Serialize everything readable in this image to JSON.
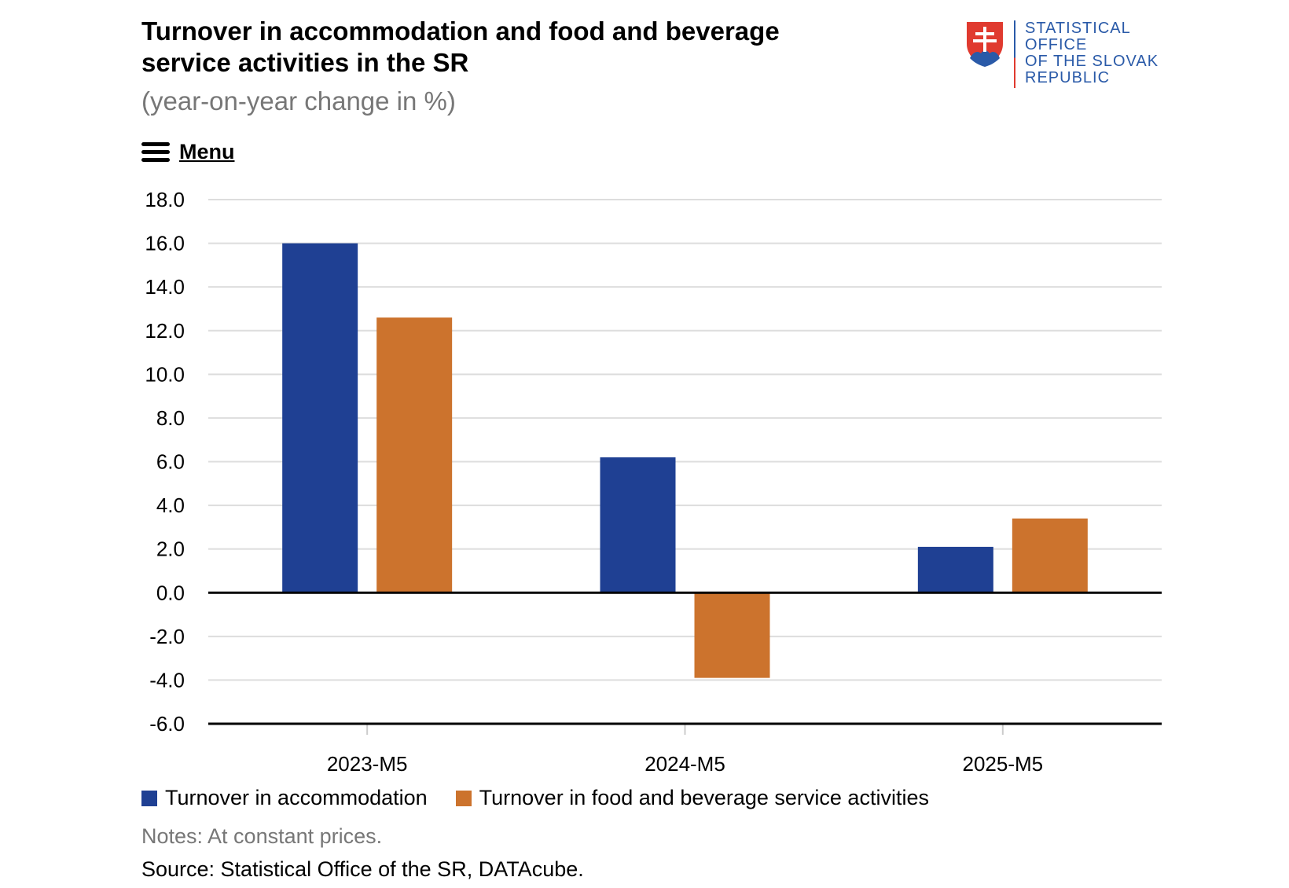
{
  "header": {
    "title": "Turnover in accommodation and food and beverage service activities in the SR",
    "subtitle": "(year-on-year change in %)"
  },
  "logo": {
    "lines": [
      "STATISTICAL",
      "OFFICE",
      "OF THE SLOVAK",
      "REPUBLIC"
    ],
    "emblem_icon": "slovak-coat-of-arms-icon"
  },
  "menu": {
    "label": "Menu",
    "icon": "hamburger-icon"
  },
  "colors": {
    "accommodation": "#1f4093",
    "food_beverage": "#cc732d",
    "grid": "#dddddd",
    "axis": "#000000"
  },
  "chart_data": {
    "type": "bar",
    "categories": [
      "2023-M5",
      "2024-M5",
      "2025-M5"
    ],
    "series": [
      {
        "name": "Turnover in accommodation",
        "values": [
          16.0,
          6.2,
          2.1
        ]
      },
      {
        "name": "Turnover in food and beverage service activities",
        "values": [
          12.6,
          -3.9,
          3.4
        ]
      }
    ],
    "ylim": [
      -6,
      18
    ],
    "yticks": [
      "18.0",
      "16.0",
      "14.0",
      "12.0",
      "10.0",
      "8.0",
      "6.0",
      "4.0",
      "2.0",
      "0.0",
      "-2.0",
      "-4.0",
      "-6.0"
    ],
    "grid": true,
    "legend": "bottom-left"
  },
  "footer": {
    "notes": "Notes: At constant prices.",
    "source": "Source: Statistical Office of the SR, DATAcube."
  }
}
